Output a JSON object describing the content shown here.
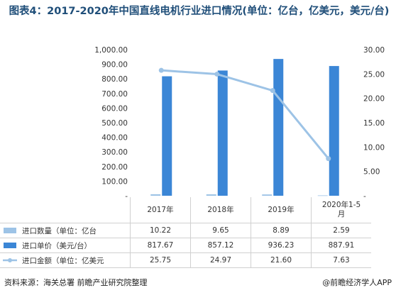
{
  "title": "图表4：2017-2020年中国直线电机行业进口情况(单位：亿台，亿美元，美元/台)",
  "colors": {
    "count": "#9dc3e6",
    "price": "#3b86d6",
    "amount": "#9dc3e6"
  },
  "chart_data": {
    "type": "bar",
    "categories": [
      "2017年",
      "2018年",
      "2019年",
      "2020年1-5月"
    ],
    "series": [
      {
        "name": "进口数量（单位：亿台",
        "type": "bar",
        "axis": "left",
        "values": [
          10.22,
          9.65,
          8.89,
          2.59
        ]
      },
      {
        "name": "进口单价（美元/台）",
        "type": "bar",
        "axis": "left",
        "values": [
          817.67,
          857.12,
          936.23,
          887.91
        ]
      },
      {
        "name": "进口金额（单位：亿美元",
        "type": "line",
        "axis": "right",
        "values": [
          25.75,
          24.97,
          21.6,
          7.63
        ]
      }
    ],
    "ylim_left": [
      0,
      1000
    ],
    "ylim_right": [
      0,
      30
    ],
    "left_ticks": [
      "-",
      "100.00",
      "200.00",
      "300.00",
      "400.00",
      "500.00",
      "600.00",
      "700.00",
      "800.00",
      "900.00",
      "1,000.00"
    ],
    "right_ticks": [
      "-",
      "5.00",
      "10.00",
      "15.00",
      "20.00",
      "25.00",
      "30.00"
    ],
    "grid": false,
    "legend": "table-left"
  },
  "table": {
    "headers": [
      "2017年",
      "2018年",
      "2019年",
      "2020年1-5\n月"
    ],
    "rows": [
      {
        "label": "进口数量（单位：亿台",
        "cells": [
          "10.22",
          "9.65",
          "8.89",
          "2.59"
        ]
      },
      {
        "label": "进口单价（美元/台）",
        "cells": [
          "817.67",
          "857.12",
          "936.23",
          "887.91"
        ]
      },
      {
        "label": "进口金额（单位：亿美元",
        "cells": [
          "25.75",
          "24.97",
          "21.60",
          "7.63"
        ]
      }
    ]
  },
  "footer": {
    "source": "资料来源：海关总署 前瞻产业研究院整理",
    "brand": "@前瞻经济学人APP"
  }
}
